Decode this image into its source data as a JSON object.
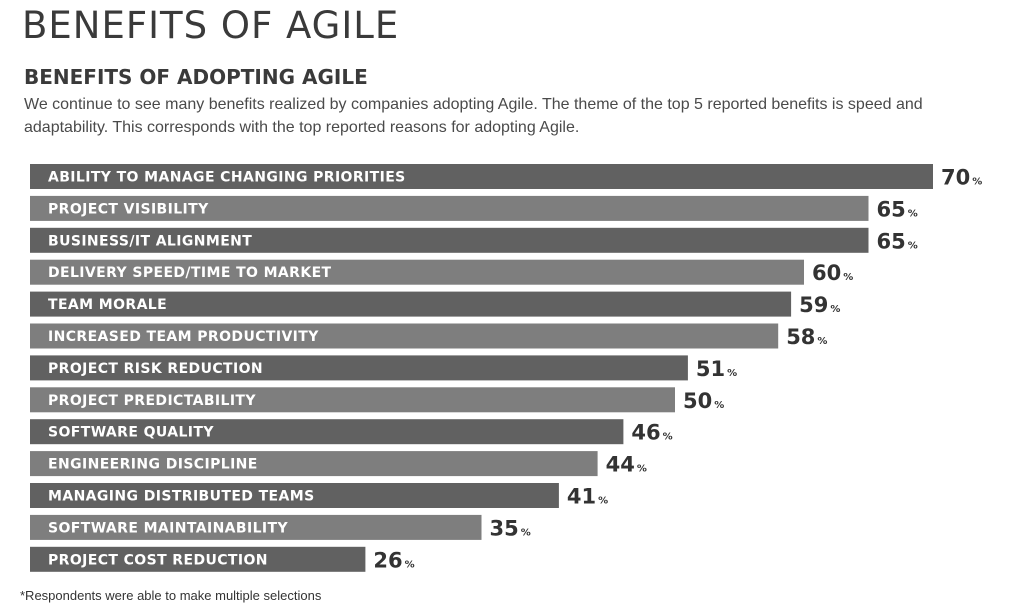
{
  "header": {
    "title": "BENEFITS OF AGILE",
    "subtitle": "BENEFITS OF ADOPTING AGILE",
    "description": "We continue to see many benefits realized by companies adopting Agile. The theme of the top 5 reported benefits is speed and adaptability. This corresponds with the top reported reasons for adopting Agile."
  },
  "footnote": "*Respondents were able to make multiple selections",
  "chart_data": {
    "type": "bar",
    "orientation": "horizontal",
    "title": "BENEFITS OF ADOPTING AGILE",
    "value_suffix": "%",
    "xlim": [
      0,
      100
    ],
    "grid": false,
    "legend": "none",
    "colors": {
      "bar_dark": "#616161",
      "bar_light": "#7e7e7e",
      "label_text": "#ffffff",
      "value_text": "#333333"
    },
    "categories": [
      "ABILITY TO MANAGE CHANGING PRIORITIES",
      "PROJECT VISIBILITY",
      "BUSINESS/IT ALIGNMENT",
      "DELIVERY SPEED/TIME TO MARKET",
      "TEAM MORALE",
      "INCREASED TEAM PRODUCTIVITY",
      "PROJECT RISK REDUCTION",
      "PROJECT PREDICTABILITY",
      "SOFTWARE QUALITY",
      "ENGINEERING DISCIPLINE",
      "MANAGING DISTRIBUTED TEAMS",
      "SOFTWARE MAINTAINABILITY",
      "PROJECT COST REDUCTION"
    ],
    "values": [
      70,
      65,
      65,
      60,
      59,
      58,
      51,
      50,
      46,
      44,
      41,
      35,
      26
    ]
  }
}
